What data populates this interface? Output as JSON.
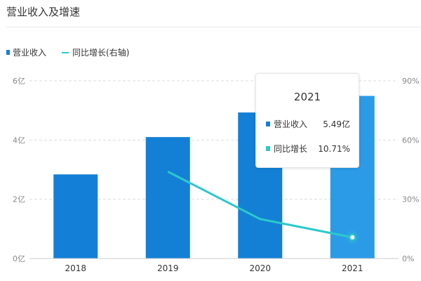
{
  "header": {
    "title": "营业收入及增速"
  },
  "legend": {
    "items": [
      {
        "label": "营业收入",
        "color": "#1380d6",
        "shape": "square"
      },
      {
        "label": "同比增长(右轴)",
        "color": "#2cc9cb",
        "shape": "line"
      }
    ]
  },
  "axes": {
    "left_ticks": [
      "0亿",
      "2亿",
      "4亿",
      "6亿"
    ],
    "right_ticks": [
      "0%",
      "30%",
      "60%",
      "90%"
    ],
    "x_ticks": [
      "2018",
      "2019",
      "2020",
      "2021"
    ]
  },
  "tooltip": {
    "year": "2021",
    "rows": [
      {
        "label": "营业收入",
        "value": "5.49亿",
        "color": "#1380d6"
      },
      {
        "label": "同比增长",
        "value": "10.71%",
        "color": "#2cc9cb"
      }
    ]
  },
  "chart_data": {
    "type": "bar",
    "title": "营业收入及增速",
    "categories": [
      "2018",
      "2019",
      "2020",
      "2021"
    ],
    "series": [
      {
        "name": "营业收入",
        "type": "bar",
        "unit": "亿",
        "axis": "left",
        "values": [
          2.84,
          4.1,
          4.93,
          5.49
        ],
        "color": "#1380d6",
        "highlight_color": "#2b9be8"
      },
      {
        "name": "同比增长(右轴)",
        "type": "line",
        "unit": "%",
        "axis": "right",
        "values": [
          null,
          44.0,
          20.0,
          10.71
        ],
        "color": "#2cc9cb"
      }
    ],
    "ylabel_left": "亿",
    "ylim_left": [
      0,
      6
    ],
    "ylabel_right": "%",
    "ylim_right": [
      0,
      90
    ],
    "grid": true,
    "legend_position": "top-left",
    "highlighted_category": "2021"
  }
}
